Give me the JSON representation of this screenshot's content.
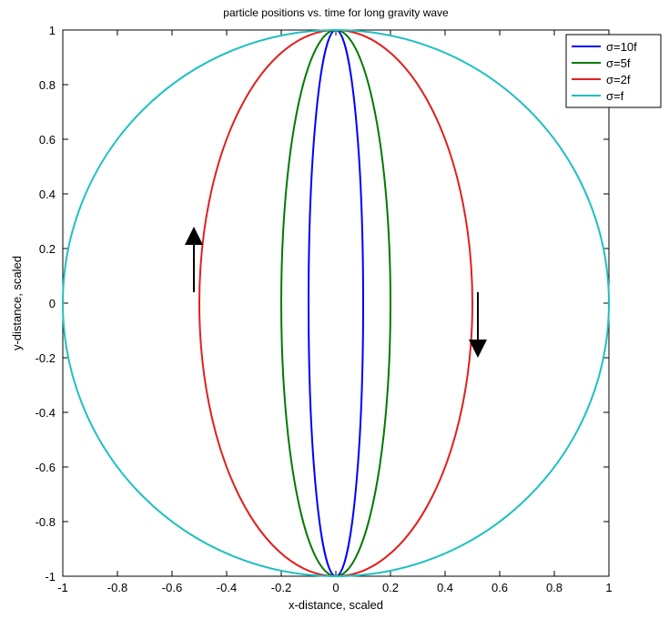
{
  "chart_data": {
    "type": "line",
    "title": "particle positions vs. time for long gravity wave",
    "xlabel": "x-distance, scaled",
    "ylabel": "y-distance, scaled",
    "xlim": [
      -1,
      1
    ],
    "ylim": [
      -1,
      1
    ],
    "grid": false,
    "legend_position": "top-right",
    "x_ticks": [
      "-1",
      "-0.8",
      "-0.6",
      "-0.4",
      "-0.2",
      "0",
      "0.2",
      "0.4",
      "0.6",
      "0.8",
      "1"
    ],
    "y_ticks": [
      "1",
      "0.8",
      "0.6",
      "0.4",
      "0.2",
      "0",
      "-0.2",
      "-0.4",
      "-0.6",
      "-0.8",
      "-1"
    ],
    "x_tick_values": [
      -1,
      -0.8,
      -0.6,
      -0.4,
      -0.2,
      0,
      0.2,
      0.4,
      0.6,
      0.8,
      1
    ],
    "y_tick_values": [
      1,
      0.8,
      0.6,
      0.4,
      0.2,
      0,
      -0.2,
      -0.4,
      -0.6,
      -0.8,
      -1
    ],
    "series": [
      {
        "name": "σ=10f",
        "color": "#0000ff",
        "x_semi_axis": 0.1,
        "y_semi_axis": 1.0
      },
      {
        "name": "σ=5f",
        "color": "#007a00",
        "x_semi_axis": 0.2,
        "y_semi_axis": 1.0
      },
      {
        "name": "σ=2f",
        "color": "#e02020",
        "x_semi_axis": 0.5,
        "y_semi_axis": 1.0
      },
      {
        "name": "σ=f",
        "color": "#20c0c0",
        "x_semi_axis": 1.0,
        "y_semi_axis": 1.0
      }
    ],
    "annotations": [
      {
        "kind": "arrow",
        "direction": "up",
        "x": -0.52,
        "y_from": 0.04,
        "y_to": 0.28
      },
      {
        "kind": "arrow",
        "direction": "down",
        "x": 0.52,
        "y_from": 0.04,
        "y_to": -0.2
      }
    ]
  }
}
